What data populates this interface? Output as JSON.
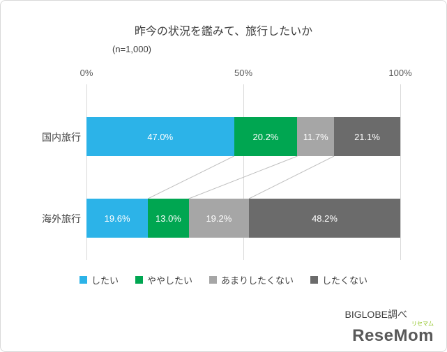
{
  "chart_data": {
    "type": "bar",
    "orientation": "horizontal-stacked",
    "title": "昨今の状況を鑑みて、旅行したいか",
    "subtitle": "(n=1,000)",
    "categories": [
      "国内旅行",
      "海外旅行"
    ],
    "series": [
      {
        "name": "したい",
        "color": "#2cb3e8",
        "values": [
          47.0,
          19.6
        ]
      },
      {
        "name": "ややしたい",
        "color": "#00a651",
        "values": [
          20.2,
          13.0
        ]
      },
      {
        "name": "あまりしたくない",
        "color": "#a6a6a6",
        "values": [
          11.7,
          19.2
        ]
      },
      {
        "name": "したくない",
        "color": "#6b6b6b",
        "values": [
          21.1,
          48.2
        ]
      }
    ],
    "x_axis": {
      "ticks": [
        "0%",
        "50%",
        "100%"
      ],
      "range": [
        0,
        100
      ],
      "position": "top"
    },
    "legend_position": "bottom",
    "grid": true,
    "data_label_format": "one_decimal_percent"
  },
  "footer": {
    "source": "BIGLOBE調べ"
  },
  "logo": {
    "small": "リセマム",
    "text": "ReseMom"
  }
}
